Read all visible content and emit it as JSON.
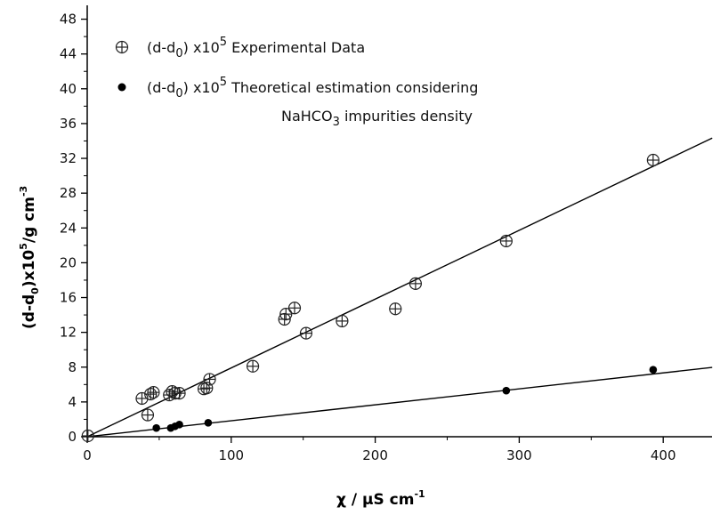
{
  "chart_data": {
    "type": "scatter",
    "xlabel": "χ / μS cm",
    "xlabel_sup": "-1",
    "ylabel_a": "(d-d",
    "ylabel_sub": "0",
    "ylabel_b": ")x10",
    "ylabel_sup": "5",
    "ylabel_c": "/g cm",
    "ylabel_sup2": "-3",
    "xlim": [
      0,
      440
    ],
    "ylim": [
      0,
      50
    ],
    "x_ticks": [
      0,
      100,
      200,
      300,
      400
    ],
    "y_ticks": [
      0,
      4,
      8,
      12,
      16,
      20,
      24,
      28,
      32,
      36,
      40,
      44,
      48
    ],
    "legend": [
      {
        "marker": "circle-plus",
        "prefix": "(d-d",
        "sub": "0",
        "mid": ") x10",
        "sup": "5",
        "text": " Experimental Data"
      },
      {
        "marker": "filled-circle",
        "prefix": "(d-d",
        "sub": "0",
        "mid": ") x10",
        "sup": "5",
        "text": " Theoretical estimation considering",
        "line2_a": "NaHCO",
        "line2_sub": "3",
        "line2_b": " impurities density"
      }
    ],
    "series": [
      {
        "marker": "circle-plus",
        "points": [
          [
            0.5,
            0.1
          ],
          [
            38,
            4.4
          ],
          [
            42,
            2.5
          ],
          [
            44,
            4.9
          ],
          [
            46,
            5.1
          ],
          [
            57,
            4.8
          ],
          [
            59,
            5.2
          ],
          [
            61,
            5.0
          ],
          [
            64,
            5.0
          ],
          [
            81,
            5.5
          ],
          [
            83,
            5.6
          ],
          [
            85,
            6.6
          ],
          [
            115,
            8.1
          ],
          [
            137,
            13.5
          ],
          [
            138,
            14.1
          ],
          [
            144,
            14.8
          ],
          [
            152,
            11.9
          ],
          [
            177,
            13.3
          ],
          [
            214,
            14.7
          ],
          [
            228,
            17.6
          ],
          [
            291,
            22.5
          ],
          [
            393,
            31.8
          ]
        ],
        "fit": {
          "slope": 0.0791,
          "intercept": 0,
          "x_range": [
            0,
            434
          ]
        }
      },
      {
        "marker": "filled-circle",
        "points": [
          [
            48,
            1.0
          ],
          [
            58,
            1.0
          ],
          [
            61,
            1.2
          ],
          [
            64,
            1.4
          ],
          [
            84,
            1.6
          ],
          [
            291,
            5.3
          ],
          [
            393,
            7.7
          ]
        ],
        "fit": {
          "slope": 0.01835,
          "intercept": 0,
          "x_range": [
            0,
            434
          ]
        }
      }
    ]
  }
}
